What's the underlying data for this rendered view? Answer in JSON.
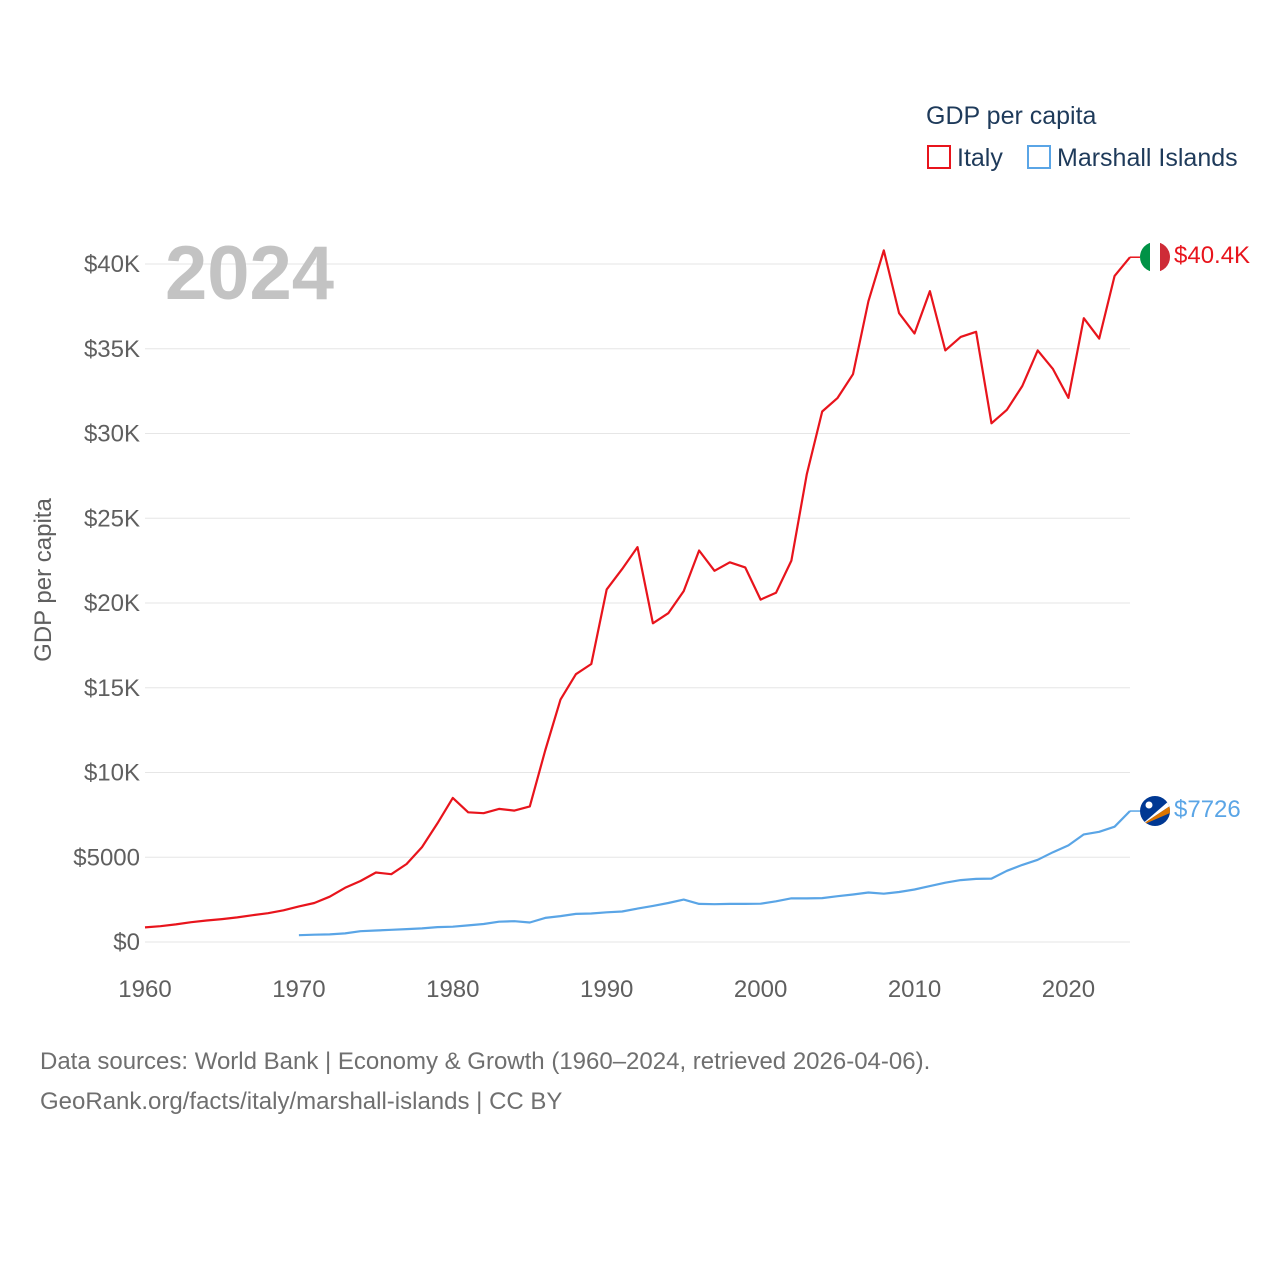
{
  "chart_data": {
    "type": "line",
    "title": "GDP per capita",
    "year_label": "2024",
    "xlabel": "",
    "ylabel": "GDP per capita",
    "xlim": [
      1960,
      2024
    ],
    "ylim": [
      0,
      40000
    ],
    "x_ticks": [
      1960,
      1970,
      1980,
      1990,
      2000,
      2010,
      2020
    ],
    "y_ticks": [
      {
        "value": 0,
        "label": "$0"
      },
      {
        "value": 5000,
        "label": "$5000"
      },
      {
        "value": 10000,
        "label": "$10K"
      },
      {
        "value": 15000,
        "label": "$15K"
      },
      {
        "value": 20000,
        "label": "$20K"
      },
      {
        "value": 25000,
        "label": "$25K"
      },
      {
        "value": 30000,
        "label": "$30K"
      },
      {
        "value": 35000,
        "label": "$35K"
      },
      {
        "value": 40000,
        "label": "$40K"
      }
    ],
    "legend_title": "GDP per capita",
    "series": [
      {
        "name": "Italy",
        "color": "#e8141c",
        "end_label": "$40.4K",
        "flag": "italy-flag",
        "start_year": 1960,
        "values": [
          860,
          930,
          1040,
          1170,
          1270,
          1350,
          1450,
          1580,
          1700,
          1870,
          2100,
          2300,
          2670,
          3200,
          3600,
          4100,
          4000,
          4600,
          5600,
          7000,
          8500,
          7650,
          7600,
          7850,
          7750,
          8000,
          11300,
          14300,
          15800,
          16400,
          20800,
          22000,
          23300,
          18800,
          19400,
          20700,
          23100,
          21900,
          22400,
          22100,
          20200,
          20600,
          22500,
          27600,
          31300,
          32100,
          33500,
          37800,
          40800,
          37100,
          35900,
          38400,
          34900,
          35700,
          36000,
          30600,
          31400,
          32800,
          34900,
          33800,
          32100,
          36800,
          35600,
          39300,
          40400
        ]
      },
      {
        "name": "Marshall Islands",
        "color": "#5aa5e6",
        "end_label": "$7726",
        "flag": "marshall-islands-flag",
        "start_year": 1970,
        "values": [
          400,
          430,
          450,
          510,
          640,
          680,
          720,
          760,
          800,
          880,
          900,
          980,
          1060,
          1200,
          1230,
          1150,
          1420,
          1530,
          1660,
          1680,
          1750,
          1800,
          1970,
          2130,
          2300,
          2500,
          2250,
          2230,
          2250,
          2250,
          2260,
          2400,
          2580,
          2570,
          2590,
          2700,
          2800,
          2920,
          2850,
          2950,
          3100,
          3300,
          3500,
          3650,
          3720,
          3740,
          4200,
          4550,
          4850,
          5300,
          5700,
          6350,
          6500,
          6800,
          7726
        ]
      }
    ]
  },
  "footer": {
    "line1": "Data sources: World Bank | Economy & Growth (1960–2024, retrieved 2026-04-06).",
    "line2": "GeoRank.org/facts/italy/marshall-islands | CC BY"
  }
}
